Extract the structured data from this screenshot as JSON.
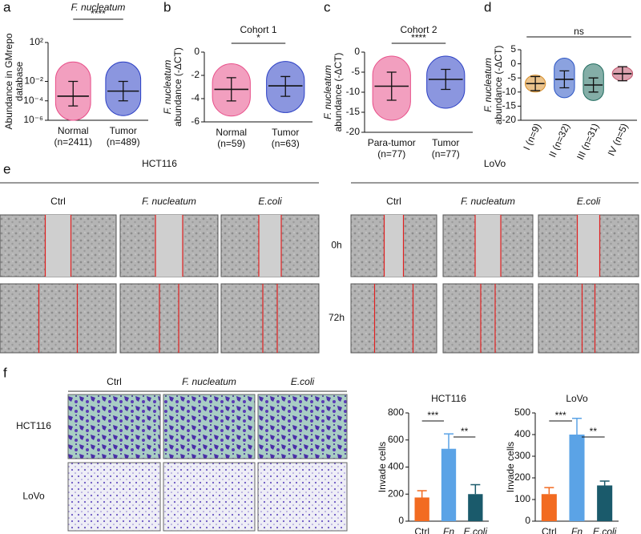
{
  "panel_labels": [
    "a",
    "b",
    "c",
    "d",
    "e",
    "f"
  ],
  "chart_data": [
    {
      "type": "dot",
      "title": "F. nucleatum",
      "ylabel": [
        "Abundance in GMrepo",
        "database"
      ],
      "log_scale": true,
      "ylim": [
        1e-06,
        100
      ],
      "yticks": [
        {
          "value": 1e-06,
          "label": "10⁻⁶"
        },
        {
          "value": 0.0001,
          "label": "10⁻⁴"
        },
        {
          "value": 0.01,
          "label": "10⁻²"
        },
        {
          "value": 100,
          "label": "10²"
        }
      ],
      "categories": [
        "Normal",
        "Tumor"
      ],
      "n_labels": [
        "(n=2411)",
        "(n=489)"
      ],
      "colors": [
        "#e8508a",
        "#2b3fc4"
      ],
      "means": [
        0.0003,
        0.001
      ],
      "error_bars": [
        [
          3e-05,
          0.01
        ],
        [
          0.0001,
          0.01
        ]
      ],
      "ranges": [
        [
          1e-06,
          1
        ],
        [
          3e-06,
          1
        ]
      ],
      "significance": [
        {
          "label": "****",
          "between": [
            0,
            1
          ]
        }
      ]
    },
    {
      "type": "dot",
      "title": "Cohort 1",
      "ylabel": [
        "F. nucleatum",
        "abundance (-ΔCT)"
      ],
      "log_scale": false,
      "ylim": [
        -6,
        0
      ],
      "yticks": [
        -6,
        -4,
        -2,
        0
      ],
      "categories": [
        "Normal",
        "Tumor"
      ],
      "n_labels": [
        "(n=59)",
        "(n=63)"
      ],
      "colors": [
        "#e8508a",
        "#2b3fc4"
      ],
      "means": [
        -3.2,
        -2.9
      ],
      "error_bars": [
        [
          -4.2,
          -2.2
        ],
        [
          -3.8,
          -2.1
        ]
      ],
      "ranges": [
        [
          -5.5,
          -1
        ],
        [
          -5.2,
          -0.8
        ]
      ],
      "significance": [
        {
          "label": "*",
          "between": [
            0,
            1
          ]
        }
      ]
    },
    {
      "type": "dot",
      "title": "Cohort 2",
      "ylabel": [
        "F. nucleatum",
        "abundance (-ΔCT)"
      ],
      "log_scale": false,
      "ylim": [
        -20,
        0
      ],
      "yticks": [
        -20,
        -15,
        -10,
        -5,
        0
      ],
      "categories": [
        "Para-tumor",
        "Tumor"
      ],
      "n_labels": [
        "(n=77)",
        "(n=77)"
      ],
      "colors": [
        "#e8508a",
        "#2b3fc4"
      ],
      "means": [
        -8.5,
        -6.8
      ],
      "error_bars": [
        [
          -12,
          -5
        ],
        [
          -9.3,
          -4.3
        ]
      ],
      "ranges": [
        [
          -17,
          -1
        ],
        [
          -14,
          -1
        ]
      ],
      "significance": [
        {
          "label": "****",
          "between": [
            0,
            1
          ]
        }
      ]
    },
    {
      "type": "dot",
      "ylabel": [
        "F. nucleatum",
        "abundance (-ΔCT)"
      ],
      "log_scale": false,
      "ylim": [
        -20,
        5
      ],
      "yticks": [
        -20,
        -15,
        -10,
        -5,
        0,
        5
      ],
      "categories": [
        "I (n=9)",
        "II (n=32)",
        "III (n=31)",
        "IV (n=5)"
      ],
      "colors": [
        "#d9902b",
        "#2b55c4",
        "#1f6b5e",
        "#c0536b"
      ],
      "means": [
        -7,
        -5.5,
        -7.5,
        -3.5
      ],
      "error_bars": [
        [
          -9.5,
          -4.5
        ],
        [
          -8.5,
          -2.5
        ],
        [
          -10,
          -5
        ],
        [
          -6,
          -1
        ]
      ],
      "ranges": [
        [
          -10,
          -4
        ],
        [
          -12,
          2
        ],
        [
          -13,
          0
        ],
        [
          -6,
          -1
        ]
      ],
      "significance": [
        {
          "label": "ns",
          "between": [
            0,
            3
          ]
        }
      ]
    },
    {
      "type": "bar",
      "title": "HCT116",
      "ylabel": [
        "Invade cells"
      ],
      "ylim": [
        0,
        800
      ],
      "yticks": [
        0,
        200,
        400,
        600,
        800
      ],
      "categories": [
        "Ctrl",
        "Fn",
        "E.coli"
      ],
      "colors": [
        "#f26b21",
        "#5ba3e6",
        "#1a5a6b"
      ],
      "values": [
        175,
        535,
        200
      ],
      "errors": [
        50,
        110,
        70
      ],
      "significance": [
        {
          "label": "***",
          "between": [
            0,
            1
          ]
        },
        {
          "label": "**",
          "between": [
            1,
            2
          ]
        }
      ]
    },
    {
      "type": "bar",
      "title": "LoVo",
      "ylabel": [
        "Invade cells"
      ],
      "ylim": [
        0,
        500
      ],
      "yticks": [
        0,
        100,
        200,
        300,
        400,
        500
      ],
      "categories": [
        "Ctrl",
        "Fn",
        "E.coli"
      ],
      "colors": [
        "#f26b21",
        "#5ba3e6",
        "#1a5a6b"
      ],
      "values": [
        125,
        400,
        165
      ],
      "errors": [
        30,
        75,
        20
      ],
      "significance": [
        {
          "label": "***",
          "between": [
            0,
            1
          ]
        },
        {
          "label": "**",
          "between": [
            1,
            2
          ]
        }
      ]
    }
  ],
  "migration": {
    "cell_lines": [
      "HCT116",
      "LoVo"
    ],
    "conditions": [
      "Ctrl",
      "F. nucleatum",
      "E.coli"
    ],
    "times": [
      "0h",
      "72h"
    ]
  },
  "invasion": {
    "conditions": [
      "Ctrl",
      "F. nucleatum",
      "E.coli"
    ],
    "cell_lines": [
      "HCT116",
      "LoVo"
    ]
  }
}
